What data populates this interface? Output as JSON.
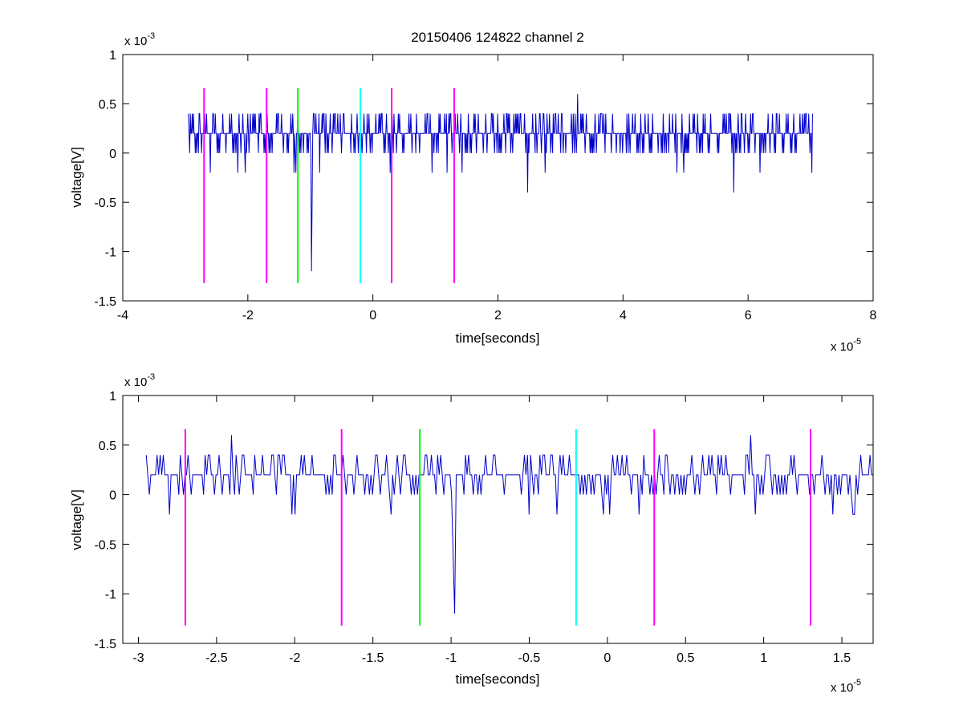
{
  "figure_title": "20150406 124822 channel 2",
  "colors": {
    "signal": "#0000cc",
    "marker_magenta": "#ff00ff",
    "marker_green": "#00ff00",
    "marker_cyan": "#00ffff",
    "axes": "#000000"
  },
  "chart_data": [
    {
      "type": "line",
      "title": "20150406 124822 channel 2",
      "xlabel": "time[seconds]",
      "ylabel": "voltage[V]",
      "x_exponent": "x 10",
      "x_exponent_power": "-5",
      "y_exponent": "x 10",
      "y_exponent_power": "-3",
      "xlim": [
        -4,
        8
      ],
      "ylim": [
        -1.5,
        1
      ],
      "xticks": [
        -4,
        -2,
        0,
        2,
        4,
        6,
        8
      ],
      "xtick_labels": [
        "-4",
        "-2",
        "0",
        "2",
        "4",
        "6",
        "8"
      ],
      "yticks": [
        -1.5,
        -1,
        -0.5,
        0,
        0.5,
        1
      ],
      "ytick_labels": [
        "-1.5",
        "-1",
        "-0.5",
        "0",
        "0.5",
        "1"
      ],
      "grid": false,
      "signal": {
        "x_start": -2.95,
        "x_end": 7.03,
        "samples": 1000,
        "levels": [
          0,
          0.2,
          0.4
        ],
        "spikes": [
          {
            "x": -0.98,
            "y": -1.2
          },
          {
            "x": -0.97,
            "y": -0.5
          },
          {
            "x": 3.27,
            "y": 0.6
          },
          {
            "x": 2.47,
            "y": -0.4
          },
          {
            "x": 5.77,
            "y": -0.4
          },
          {
            "x": 7.02,
            "y": -0.2
          }
        ]
      },
      "markers": [
        {
          "x": -2.7,
          "color": "magenta",
          "y_top": 0.66,
          "y_bottom": -1.32
        },
        {
          "x": -1.7,
          "color": "magenta",
          "y_top": 0.66,
          "y_bottom": -1.32
        },
        {
          "x": -1.2,
          "color": "green",
          "y_top": 0.66,
          "y_bottom": -1.32
        },
        {
          "x": -0.2,
          "color": "cyan",
          "y_top": 0.66,
          "y_bottom": -1.32
        },
        {
          "x": 0.3,
          "color": "magenta",
          "y_top": 0.66,
          "y_bottom": -1.32
        },
        {
          "x": 1.3,
          "color": "magenta",
          "y_top": 0.66,
          "y_bottom": -1.32
        }
      ]
    },
    {
      "type": "line",
      "title": "",
      "xlabel": "time[seconds]",
      "ylabel": "voltage[V]",
      "x_exponent": "x 10",
      "x_exponent_power": "-5",
      "y_exponent": "x 10",
      "y_exponent_power": "-3",
      "xlim": [
        -3.1,
        1.7
      ],
      "ylim": [
        -1.5,
        1
      ],
      "xticks": [
        -3,
        -2.5,
        -2,
        -1.5,
        -1,
        -0.5,
        0,
        0.5,
        1,
        1.5
      ],
      "xtick_labels": [
        "-3",
        "-2.5",
        "-2",
        "-1.5",
        "-1",
        "-0.5",
        "0",
        "0.5",
        "1",
        "1.5"
      ],
      "yticks": [
        -1.5,
        -1,
        -0.5,
        0,
        0.5,
        1
      ],
      "ytick_labels": [
        "-1.5",
        "-1",
        "-0.5",
        "0",
        "0.5",
        "1"
      ],
      "grid": false,
      "signal": {
        "x_start": -2.95,
        "x_end": 1.7,
        "samples": 470,
        "levels": [
          0,
          0.2,
          0.4
        ],
        "spikes": [
          {
            "x": -0.98,
            "y": -1.2
          },
          {
            "x": -0.99,
            "y": -0.6
          },
          {
            "x": -2.4,
            "y": 0.6
          },
          {
            "x": 0.92,
            "y": 0.6
          },
          {
            "x": -2.8,
            "y": -0.2
          },
          {
            "x": -2.0,
            "y": -0.2
          }
        ]
      },
      "markers": [
        {
          "x": -2.7,
          "color": "magenta",
          "y_top": 0.66,
          "y_bottom": -1.32
        },
        {
          "x": -1.7,
          "color": "magenta",
          "y_top": 0.66,
          "y_bottom": -1.32
        },
        {
          "x": -1.2,
          "color": "green",
          "y_top": 0.66,
          "y_bottom": -1.32
        },
        {
          "x": -0.2,
          "color": "cyan",
          "y_top": 0.66,
          "y_bottom": -1.32
        },
        {
          "x": 0.3,
          "color": "magenta",
          "y_top": 0.66,
          "y_bottom": -1.32
        },
        {
          "x": 1.3,
          "color": "magenta",
          "y_top": 0.66,
          "y_bottom": -1.32
        }
      ]
    }
  ]
}
